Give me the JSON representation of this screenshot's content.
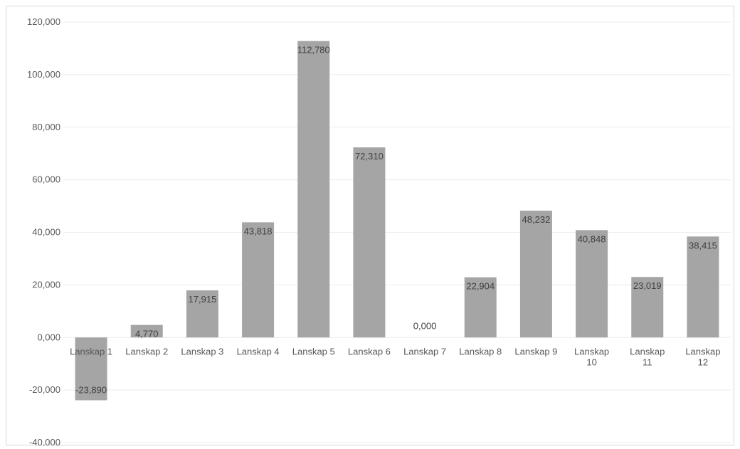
{
  "colors": {
    "bar": "#a5a5a5",
    "grid": "#ececec",
    "text": "#595959",
    "label": "#404040"
  },
  "chart_data": {
    "type": "bar",
    "title": "",
    "xlabel": "",
    "ylabel": "",
    "ylim": [
      -40000,
      120000
    ],
    "yticks": [
      120000,
      100000,
      80000,
      60000,
      40000,
      20000,
      0,
      -20000,
      -40000
    ],
    "ytick_labels": [
      "120,000",
      "100,000",
      "80,000",
      "60,000",
      "40,000",
      "20,000",
      "0,000",
      "-20,000",
      "-40,000"
    ],
    "grid": true,
    "legend": "none",
    "categories": [
      [
        "Lanskap 1"
      ],
      [
        "Lanskap 2"
      ],
      [
        "Lanskap 3"
      ],
      [
        "Lanskap 4"
      ],
      [
        "Lanskap 5"
      ],
      [
        "Lanskap 6"
      ],
      [
        "Lanskap 7"
      ],
      [
        "Lanskap 8"
      ],
      [
        "Lanskap 9"
      ],
      [
        "Lanskap",
        "10"
      ],
      [
        "Lanskap",
        "11"
      ],
      [
        "Lanskap",
        "12"
      ]
    ],
    "values": [
      -23890,
      4770,
      17915,
      43818,
      112780,
      72310,
      0,
      22904,
      48232,
      40848,
      23019,
      38415
    ],
    "value_labels": [
      "-23,890",
      "4,770",
      "17,915",
      "43,818",
      "112,780",
      "72,310",
      "0,000",
      "22,904",
      "48,232",
      "40,848",
      "23,019",
      "38,415"
    ]
  }
}
